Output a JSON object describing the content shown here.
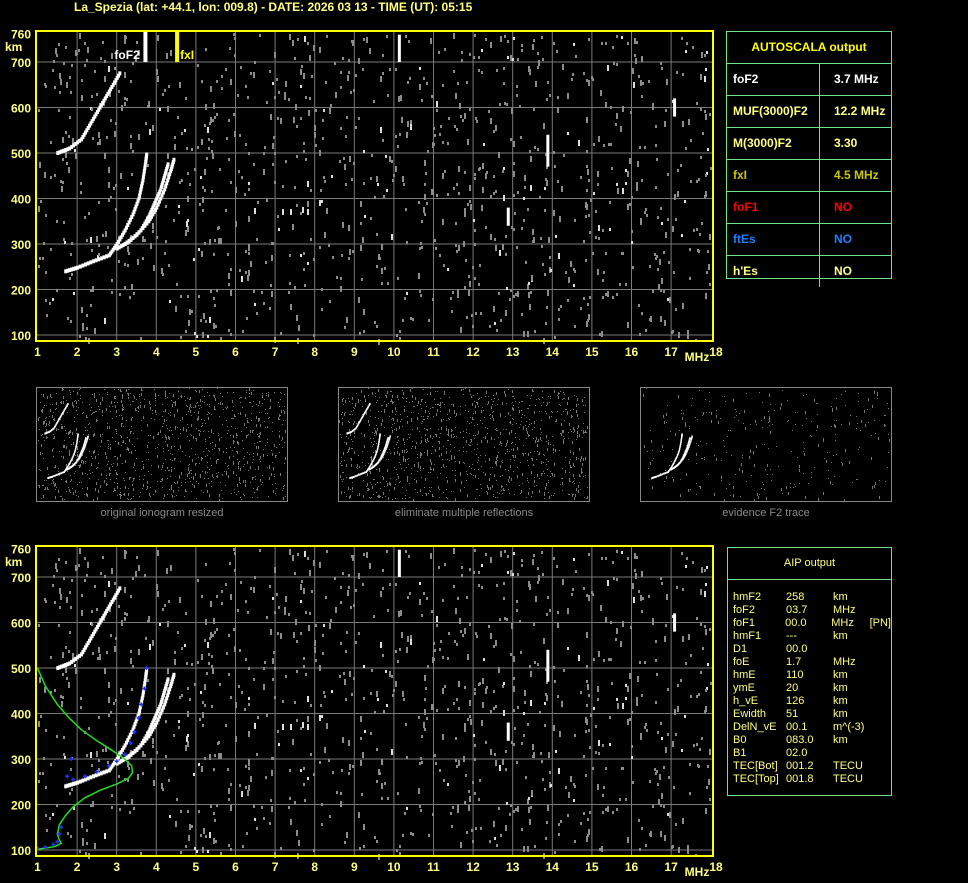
{
  "header": {
    "title": "La_Spezia (lat: +44.1, lon: 009.8) - DATE: 2026 03 13 - TIME (UT): 05:15"
  },
  "colors": {
    "frame": "#ffff00",
    "grid": "#7a7a7a",
    "trace": "#ffffff",
    "noise": "#8c8c8c",
    "profile": "#22dd22",
    "aip_points": "#2233ff",
    "table_border": "#6fe28a",
    "fxI": "#c8c800",
    "foF1": "#ff0000",
    "ftEs": "#1a7fff"
  },
  "autoscala": {
    "title": "AUTOSCALA output",
    "rows": [
      {
        "label": "foF2",
        "value": "3.7 MHz",
        "color": "#ffffff"
      },
      {
        "label": "MUF(3000)F2",
        "value": "12.2 MHz",
        "color": "#ffff80"
      },
      {
        "label": "M(3000)F2",
        "value": "3.30",
        "color": "#ffff80"
      },
      {
        "label": "fxI",
        "value": "4.5 MHz",
        "color": "#c8c800"
      },
      {
        "label": "foF1",
        "value": "NO",
        "color": "#ff0000"
      },
      {
        "label": "ftEs",
        "value": "NO",
        "color": "#1a7fff"
      },
      {
        "label": "h'Es",
        "value": "NO",
        "color": "#ffff80"
      }
    ]
  },
  "aip": {
    "title": "AIP output",
    "rows": [
      [
        "hmF2",
        "258",
        "km",
        ""
      ],
      [
        "foF2",
        "03.7",
        "MHz",
        ""
      ],
      [
        "foF1",
        "00.0",
        "MHz",
        "[PN]"
      ],
      [
        "hmF1",
        "---",
        "km",
        ""
      ],
      [
        "D1",
        "00.0",
        "",
        ""
      ],
      [
        "foE",
        "1.7",
        "MHz",
        ""
      ],
      [
        "hmE",
        "110",
        "km",
        ""
      ],
      [
        "ymE",
        "20",
        "km",
        ""
      ],
      [
        "h_vE",
        "126",
        "km",
        ""
      ],
      [
        "Ewidth",
        "51",
        "km",
        ""
      ],
      [
        "DelN_vE",
        "00.1",
        "m^(-3)",
        ""
      ],
      [
        "B0",
        "083.0",
        "km",
        ""
      ],
      [
        "B1",
        "02.0",
        "",
        ""
      ],
      [
        "TEC[Bot]",
        "001.2",
        "TECU",
        ""
      ],
      [
        "TEC[Top]",
        "001.8",
        "TECU",
        ""
      ]
    ]
  },
  "thumbnails": [
    {
      "caption": "original ionogram resized"
    },
    {
      "caption": "eliminate multiple reflections"
    },
    {
      "caption": "evidence F2 trace"
    }
  ],
  "chart_data": [
    {
      "type": "scatter",
      "name_hint": "ionogram",
      "xlabel": "MHz",
      "ylabel": "km",
      "xlim": [
        1,
        18
      ],
      "ylim": [
        100,
        760
      ],
      "xticks": [
        "1",
        "2",
        "3",
        "4",
        "5",
        "6",
        "7",
        "8",
        "9",
        "10",
        "11",
        "12",
        "13",
        "14",
        "15",
        "16",
        "17",
        "18"
      ],
      "yticks": [
        "100",
        "200",
        "300",
        "400",
        "500",
        "600",
        "700",
        "760"
      ],
      "grid": true,
      "markers": [
        {
          "label": "foF2",
          "freq": 3.7,
          "color": "#ffffff"
        },
        {
          "label": "fxI",
          "freq": 4.5,
          "color": "#ffff00"
        }
      ],
      "traces": [
        {
          "x": [
            1.7,
            2.0,
            2.4,
            2.8,
            3.0,
            3.2,
            3.4,
            3.55,
            3.65,
            3.72,
            3.75
          ],
          "y": [
            240,
            248,
            262,
            275,
            300,
            330,
            365,
            400,
            440,
            480,
            500
          ]
        },
        {
          "x": [
            3.0,
            3.3,
            3.6,
            3.8,
            3.95,
            4.1,
            4.2,
            4.3
          ],
          "y": [
            290,
            305,
            330,
            360,
            390,
            420,
            450,
            480
          ]
        },
        {
          "x": [
            3.2,
            3.5,
            3.8,
            4.0,
            4.2,
            4.35,
            4.45
          ],
          "y": [
            300,
            320,
            350,
            380,
            420,
            460,
            490
          ]
        },
        {
          "x": [
            1.5,
            1.8,
            2.1,
            2.3,
            2.5,
            2.7,
            2.9,
            3.1
          ],
          "y": [
            500,
            510,
            530,
            560,
            590,
            620,
            650,
            680
          ]
        }
      ]
    },
    {
      "type": "line",
      "name_hint": "ionogram with AIP profile",
      "xlabel": "MHz",
      "ylabel": "km",
      "xlim": [
        1,
        18
      ],
      "ylim": [
        100,
        760
      ],
      "xticks": [
        "1",
        "2",
        "3",
        "4",
        "5",
        "6",
        "7",
        "8",
        "9",
        "10",
        "11",
        "12",
        "13",
        "14",
        "15",
        "16",
        "17",
        "18"
      ],
      "yticks": [
        "100",
        "200",
        "300",
        "400",
        "500",
        "600",
        "700",
        "760"
      ],
      "grid": true,
      "profile": {
        "x": [
          1.0,
          1.2,
          1.5,
          1.8,
          2.1,
          2.5,
          2.9,
          3.2,
          3.38,
          3.4,
          3.3,
          3.0,
          2.6,
          2.2,
          1.9,
          1.7,
          1.55,
          1.5,
          1.55,
          1.6,
          1.45,
          1.2,
          1.0
        ],
        "y": [
          500,
          460,
          420,
          390,
          365,
          340,
          318,
          300,
          285,
          270,
          258,
          245,
          232,
          215,
          195,
          175,
          155,
          135,
          122,
          115,
          108,
          104,
          102
        ]
      },
      "aip_points": {
        "x": [
          1.0,
          1.2,
          1.4,
          1.5,
          1.55,
          1.6,
          1.75,
          1.9,
          2.2,
          2.5,
          2.8,
          3.0,
          3.2,
          3.35,
          3.45,
          3.55,
          3.62,
          3.7,
          3.75,
          1.85
        ],
        "y": [
          104,
          106,
          112,
          118,
          135,
          150,
          262,
          255,
          262,
          272,
          285,
          295,
          310,
          335,
          360,
          390,
          420,
          455,
          500,
          300
        ]
      },
      "traces": [
        {
          "x": [
            1.7,
            2.0,
            2.4,
            2.8,
            3.0,
            3.2,
            3.4,
            3.55,
            3.65,
            3.72,
            3.75
          ],
          "y": [
            240,
            248,
            262,
            275,
            300,
            330,
            365,
            400,
            440,
            480,
            500
          ]
        },
        {
          "x": [
            3.0,
            3.3,
            3.6,
            3.8,
            3.95,
            4.1,
            4.2,
            4.3
          ],
          "y": [
            290,
            305,
            330,
            360,
            390,
            420,
            450,
            480
          ]
        },
        {
          "x": [
            3.2,
            3.5,
            3.8,
            4.0,
            4.2,
            4.35,
            4.45
          ],
          "y": [
            300,
            320,
            350,
            380,
            420,
            460,
            490
          ]
        },
        {
          "x": [
            1.5,
            1.8,
            2.1,
            2.3,
            2.5,
            2.7,
            2.9,
            3.1
          ],
          "y": [
            500,
            510,
            530,
            560,
            590,
            620,
            650,
            680
          ]
        }
      ]
    }
  ]
}
